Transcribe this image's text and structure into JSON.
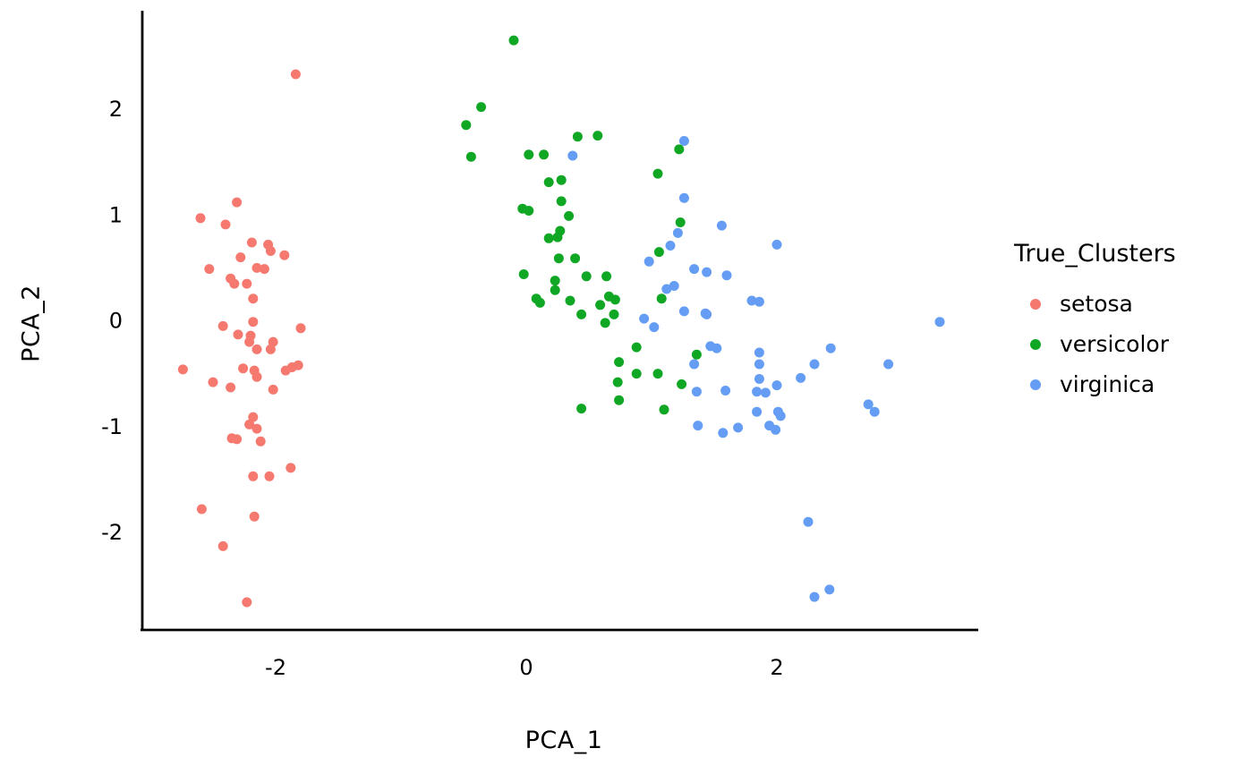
{
  "background_color": "#ffffff",
  "axis_color": "#000000",
  "text_color": "#000000",
  "x_axis": {
    "title": "PCA_1"
  },
  "y_axis": {
    "title": "PCA_2"
  },
  "legend": {
    "title": "True_Clusters",
    "items": [
      {
        "label": "setosa",
        "color": "#F5796F"
      },
      {
        "label": "versicolor",
        "color": "#10A724"
      },
      {
        "label": "virginica",
        "color": "#649DF3"
      }
    ]
  },
  "chart_data": {
    "type": "scatter",
    "title": "",
    "xlabel": "PCA_1",
    "ylabel": "PCA_2",
    "xlim": [
      -3.05,
      3.6
    ],
    "ylim": [
      -2.95,
      2.95
    ],
    "x_ticks": [
      -2,
      0,
      2
    ],
    "y_ticks": [
      2,
      1,
      0,
      -1,
      -2
    ],
    "grid": false,
    "legend_position": "right",
    "legend_title": "True_Clusters",
    "series": [
      {
        "name": "setosa",
        "color": "#F5796F",
        "points": [
          [
            -1.84,
            2.33
          ],
          [
            -2.31,
            1.12
          ],
          [
            -2.6,
            0.97
          ],
          [
            -2.4,
            0.91
          ],
          [
            -2.19,
            0.74
          ],
          [
            -2.06,
            0.72
          ],
          [
            -2.04,
            0.66
          ],
          [
            -1.93,
            0.62
          ],
          [
            -2.28,
            0.6
          ],
          [
            -2.53,
            0.49
          ],
          [
            -2.15,
            0.5
          ],
          [
            -2.09,
            0.49
          ],
          [
            -2.36,
            0.4
          ],
          [
            -2.33,
            0.35
          ],
          [
            -2.23,
            0.35
          ],
          [
            -2.18,
            0.21
          ],
          [
            -2.18,
            -0.01
          ],
          [
            -2.42,
            -0.05
          ],
          [
            -1.8,
            -0.07
          ],
          [
            -2.3,
            -0.13
          ],
          [
            -2.2,
            -0.14
          ],
          [
            -2.21,
            -0.2
          ],
          [
            -2.15,
            -0.27
          ],
          [
            -2.02,
            -0.2
          ],
          [
            -2.04,
            -0.27
          ],
          [
            -2.74,
            -0.46
          ],
          [
            -2.26,
            -0.45
          ],
          [
            -2.17,
            -0.47
          ],
          [
            -2.15,
            -0.53
          ],
          [
            -1.92,
            -0.47
          ],
          [
            -1.87,
            -0.44
          ],
          [
            -1.82,
            -0.42
          ],
          [
            -2.5,
            -0.58
          ],
          [
            -2.36,
            -0.63
          ],
          [
            -2.02,
            -0.65
          ],
          [
            -2.18,
            -0.91
          ],
          [
            -2.21,
            -0.98
          ],
          [
            -2.15,
            -1.02
          ],
          [
            -2.35,
            -1.11
          ],
          [
            -2.31,
            -1.12
          ],
          [
            -2.12,
            -1.14
          ],
          [
            -1.88,
            -1.39
          ],
          [
            -2.18,
            -1.47
          ],
          [
            -2.05,
            -1.47
          ],
          [
            -2.59,
            -1.78
          ],
          [
            -2.17,
            -1.85
          ],
          [
            -2.42,
            -2.13
          ],
          [
            -2.23,
            -2.66
          ]
        ]
      },
      {
        "name": "versicolor",
        "color": "#10A724",
        "points": [
          [
            -0.1,
            2.65
          ],
          [
            -0.36,
            2.02
          ],
          [
            -0.48,
            1.85
          ],
          [
            -0.44,
            1.55
          ],
          [
            0.02,
            1.57
          ],
          [
            0.14,
            1.57
          ],
          [
            0.41,
            1.74
          ],
          [
            0.57,
            1.75
          ],
          [
            0.18,
            1.31
          ],
          [
            0.28,
            1.33
          ],
          [
            0.28,
            1.13
          ],
          [
            0.34,
            0.99
          ],
          [
            -0.03,
            1.06
          ],
          [
            0.02,
            1.04
          ],
          [
            0.27,
            0.85
          ],
          [
            0.25,
            0.79
          ],
          [
            0.18,
            0.78
          ],
          [
            0.26,
            0.59
          ],
          [
            0.39,
            0.59
          ],
          [
            1.05,
            1.39
          ],
          [
            1.22,
            1.62
          ],
          [
            1.23,
            0.93
          ],
          [
            1.06,
            0.65
          ],
          [
            -0.02,
            0.44
          ],
          [
            0.23,
            0.38
          ],
          [
            0.23,
            0.29
          ],
          [
            0.48,
            0.42
          ],
          [
            0.64,
            0.42
          ],
          [
            0.08,
            0.21
          ],
          [
            0.11,
            0.17
          ],
          [
            0.35,
            0.19
          ],
          [
            0.66,
            0.23
          ],
          [
            0.71,
            0.2
          ],
          [
            0.59,
            0.15
          ],
          [
            0.44,
            0.06
          ],
          [
            0.7,
            0.06
          ],
          [
            0.63,
            -0.02
          ],
          [
            1.08,
            0.21
          ],
          [
            0.88,
            -0.25
          ],
          [
            0.74,
            -0.39
          ],
          [
            0.88,
            -0.5
          ],
          [
            1.05,
            -0.5
          ],
          [
            0.73,
            -0.58
          ],
          [
            1.36,
            -0.32
          ],
          [
            1.24,
            -0.6
          ],
          [
            0.74,
            -0.75
          ],
          [
            0.44,
            -0.83
          ],
          [
            1.1,
            -0.84
          ]
        ]
      },
      {
        "name": "virginica",
        "color": "#649DF3",
        "points": [
          [
            0.37,
            1.56
          ],
          [
            1.26,
            1.7
          ],
          [
            1.26,
            1.16
          ],
          [
            1.21,
            0.83
          ],
          [
            1.15,
            0.71
          ],
          [
            0.98,
            0.56
          ],
          [
            1.34,
            0.49
          ],
          [
            1.44,
            0.46
          ],
          [
            1.6,
            0.43
          ],
          [
            1.12,
            0.3
          ],
          [
            1.18,
            0.33
          ],
          [
            1.26,
            0.09
          ],
          [
            1.43,
            0.07
          ],
          [
            1.44,
            0.06
          ],
          [
            0.94,
            0.02
          ],
          [
            1.02,
            -0.06
          ],
          [
            1.47,
            -0.24
          ],
          [
            1.52,
            -0.26
          ],
          [
            1.34,
            -0.41
          ],
          [
            1.36,
            -0.67
          ],
          [
            1.37,
            -0.99
          ],
          [
            1.56,
            0.9
          ],
          [
            2.0,
            0.72
          ],
          [
            1.8,
            0.19
          ],
          [
            1.86,
            0.18
          ],
          [
            3.3,
            -0.01
          ],
          [
            1.86,
            -0.3
          ],
          [
            1.86,
            -0.41
          ],
          [
            2.43,
            -0.26
          ],
          [
            2.3,
            -0.41
          ],
          [
            2.89,
            -0.41
          ],
          [
            1.86,
            -0.55
          ],
          [
            2.0,
            -0.61
          ],
          [
            1.59,
            -0.66
          ],
          [
            2.19,
            -0.54
          ],
          [
            1.84,
            -0.67
          ],
          [
            1.91,
            -0.68
          ],
          [
            1.84,
            -0.86
          ],
          [
            2.01,
            -0.86
          ],
          [
            2.03,
            -0.9
          ],
          [
            1.69,
            -1.01
          ],
          [
            1.94,
            -0.99
          ],
          [
            1.99,
            -1.03
          ],
          [
            1.57,
            -1.06
          ],
          [
            2.73,
            -0.79
          ],
          [
            2.78,
            -0.86
          ],
          [
            2.25,
            -1.9
          ],
          [
            2.42,
            -2.54
          ],
          [
            2.3,
            -2.61
          ]
        ]
      }
    ]
  }
}
